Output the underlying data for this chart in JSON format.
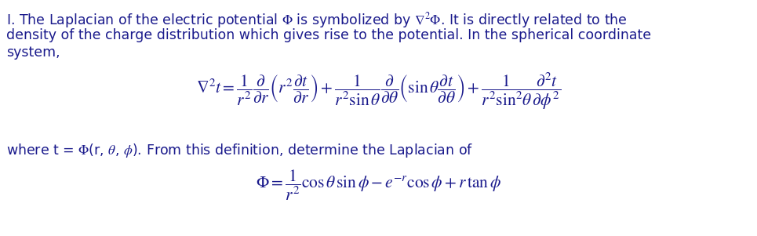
{
  "bg_color": "#ffffff",
  "text_color": "#1a1a8c",
  "fig_width": 9.65,
  "fig_height": 3.01,
  "dpi": 100,
  "line1": "I. The Laplacian of the electric potential $\\Phi$ is symbolized by $\\nabla^2\\Phi$. It is directly related to the",
  "line2": "density of the charge distribution which gives rise to the potential. In the spherical coordinate",
  "line3": "system,",
  "equation1": "$\\nabla^2 t = \\dfrac{1}{r^2}\\dfrac{\\partial}{\\partial r}\\left(r^2\\dfrac{\\partial t}{\\partial r}\\right) + \\dfrac{1}{r^2 \\sin\\theta}\\dfrac{\\partial}{\\partial \\theta}\\left(\\sin\\theta\\dfrac{\\partial t}{\\partial \\theta}\\right) + \\dfrac{1}{r^2 \\sin^2\\!\\theta}\\dfrac{\\partial^2 t}{\\partial \\phi^2}$",
  "paragraph2": "where t = $\\Phi$(r, $\\theta$, $\\phi$). From this definition, determine the Laplacian of",
  "equation2": "$\\Phi = \\dfrac{1}{r^2}\\cos\\theta\\,\\sin\\phi - e^{-r}\\cos\\phi + r\\,\\tan\\phi$",
  "font_size_text": 12.5,
  "font_size_eq1": 15.5,
  "font_size_eq2": 15.5,
  "font_size_para2": 12.5
}
